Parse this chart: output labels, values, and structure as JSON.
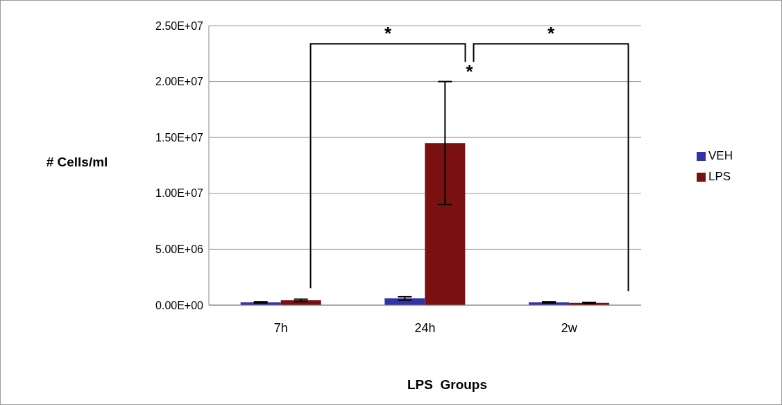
{
  "chart_data": {
    "type": "bar",
    "xlabel": "LPS  Groups",
    "ylabel": "# Cells/ml",
    "categories": [
      "7h",
      "24h",
      "2w"
    ],
    "series": [
      {
        "name": "VEH",
        "color": "#3333a8",
        "values": [
          250000,
          600000,
          250000
        ],
        "errors": [
          50000,
          150000,
          50000
        ]
      },
      {
        "name": "LPS",
        "color": "#7a1010",
        "values": [
          430000,
          14500000,
          200000
        ],
        "errors": [
          100000,
          5500000,
          50000
        ]
      }
    ],
    "ylim": [
      0,
      25000000
    ],
    "yticks": [
      {
        "value": 0,
        "label": "0.00E+00"
      },
      {
        "value": 5000000,
        "label": "5.00E+06"
      },
      {
        "value": 10000000,
        "label": "1.00E+07"
      },
      {
        "value": 15000000,
        "label": "1.50E+07"
      },
      {
        "value": 20000000,
        "label": "2.00E+07"
      },
      {
        "value": 25000000,
        "label": "2.50E+07"
      }
    ],
    "grid": "y",
    "legend": "right",
    "annotations": [
      "*",
      "*",
      "*"
    ]
  }
}
